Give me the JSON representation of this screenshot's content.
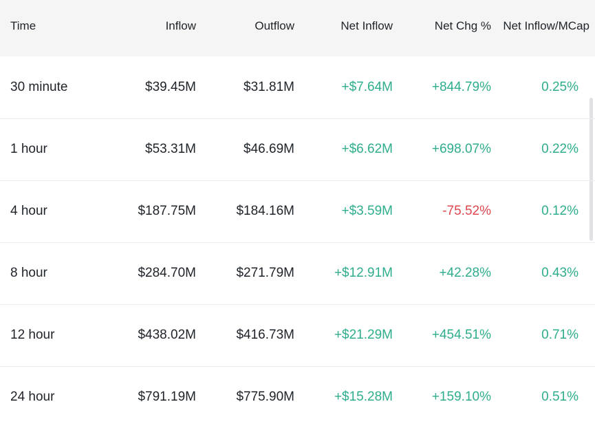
{
  "table": {
    "header": [
      "Time",
      "Inflow",
      "Outflow",
      "Net Inflow",
      "Net Chg %",
      "Net Inflow/MCap"
    ],
    "rows": [
      [
        "30 minute",
        "$39.45M",
        "$31.81M",
        "+$7.64M",
        "+844.79%",
        "0.25%"
      ],
      [
        "1 hour",
        "$53.31M",
        "$46.69M",
        "+$6.62M",
        "+698.07%",
        "0.22%"
      ],
      [
        "4 hour",
        "$187.75M",
        "$184.16M",
        "+$3.59M",
        "-75.52%",
        "0.12%"
      ],
      [
        "8 hour",
        "$284.70M",
        "$271.79M",
        "+$12.91M",
        "+42.28%",
        "0.43%"
      ],
      [
        "12 hour",
        "$438.02M",
        "$416.73M",
        "+$21.29M",
        "+454.51%",
        "0.71%"
      ],
      [
        "24 hour",
        "$791.19M",
        "$775.90M",
        "+$15.28M",
        "+159.10%",
        "0.51%"
      ]
    ]
  }
}
